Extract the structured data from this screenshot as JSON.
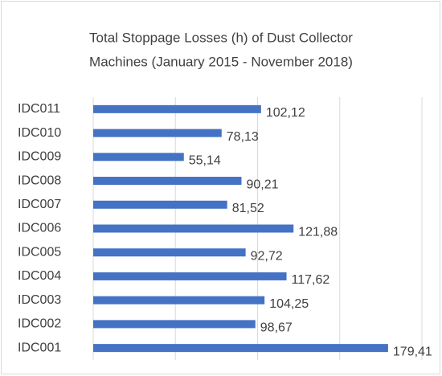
{
  "chart_data": {
    "type": "hbar",
    "title": [
      "Total Stoppage Losses (h) of Dust Collector",
      "Machines (January 2015 - November 2018)"
    ],
    "categories": [
      "IDC011",
      "IDC010",
      "IDC009",
      "IDC008",
      "IDC007",
      "IDC006",
      "IDC005",
      "IDC004",
      "IDC003",
      "IDC002",
      "IDC001"
    ],
    "values": [
      102.12,
      78.13,
      55.14,
      90.21,
      81.52,
      121.88,
      92.72,
      117.62,
      104.25,
      98.67,
      179.41
    ],
    "value_labels": [
      "102,12",
      "78,13",
      "55,14",
      "90,21",
      "81,52",
      "121,88",
      "92,72",
      "117,62",
      "104,25",
      "98,67",
      "179,41"
    ],
    "color": "#4472c4",
    "xlim": [
      0,
      200
    ],
    "xticks": [
      0,
      50,
      100,
      150,
      200
    ],
    "grid": true
  }
}
